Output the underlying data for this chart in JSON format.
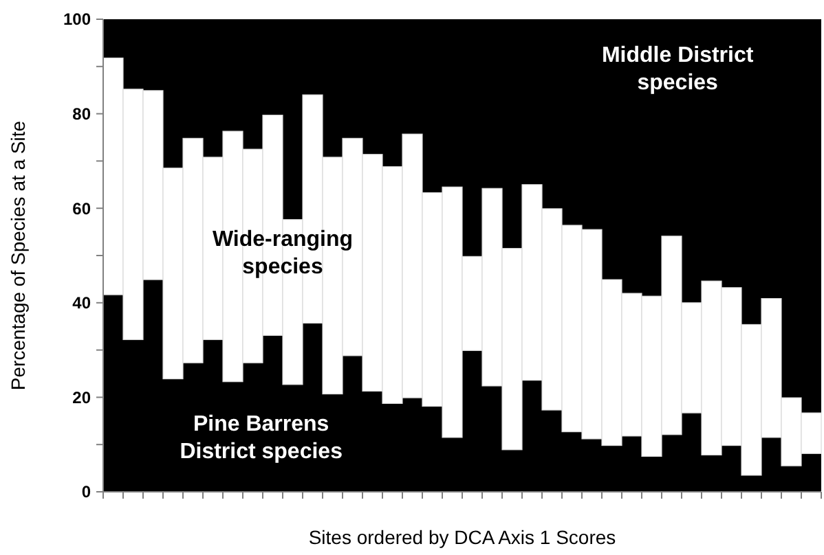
{
  "chart_data": {
    "type": "bar",
    "stacked": true,
    "ylabel": "Percentage of Species at a Site",
    "xlabel": "Sites ordered by DCA Axis 1 Scores",
    "categories": [
      null,
      null,
      null,
      null,
      null,
      null,
      null,
      null,
      null,
      null,
      null,
      null,
      null,
      null,
      null,
      null,
      null,
      null,
      null,
      null,
      null,
      null,
      null,
      null,
      null,
      null,
      null,
      null,
      null,
      null,
      null,
      null,
      null,
      null,
      null,
      null
    ],
    "ylim": [
      0,
      100
    ],
    "yticks": [
      0,
      {
        "value": 10,
        "label": null
      },
      20,
      {
        "value": 30,
        "label": null
      },
      40,
      {
        "value": 50,
        "label": null
      },
      60,
      {
        "value": 70,
        "label": null
      },
      80,
      {
        "value": 90,
        "label": null
      },
      100
    ],
    "grid": false,
    "series": [
      {
        "name": "Pine Barrens District species",
        "color": "#000000",
        "values": [
          41.7,
          32.2,
          44.9,
          23.9,
          27.3,
          32.2,
          23.3,
          27.3,
          33.1,
          22.7,
          35.7,
          20.7,
          28.8,
          21.3,
          18.7,
          19.9,
          18.1,
          11.5,
          29.9,
          22.4,
          8.9,
          23.6,
          17.3,
          12.7,
          11.2,
          9.8,
          11.8,
          7.5,
          12.1,
          16.7,
          7.8,
          9.8,
          3.5,
          11.5,
          5.5,
          8.1
        ]
      },
      {
        "name": "Wide-ranging species",
        "color": "#ffffff",
        "values": [
          50.1,
          53,
          40,
          44.6,
          47.5,
          38.6,
          53,
          45.2,
          46.6,
          34.9,
          48.3,
          50.1,
          46,
          50.1,
          50.1,
          55.8,
          45.2,
          53,
          19.9,
          41.8,
          42.6,
          41.4,
          42.6,
          43.7,
          44.3,
          35.1,
          30.2,
          33.9,
          42,
          23.3,
          36.8,
          33.4,
          31.9,
          29.4,
          14.4,
          8.6
        ]
      },
      {
        "name": "Middle District species",
        "color": "#000000",
        "values": [
          8.2,
          14.8,
          15.1,
          31.5,
          25.2,
          29.2,
          23.7,
          27.5,
          20.3,
          42.4,
          16,
          29.2,
          25.2,
          28.6,
          31.2,
          24.3,
          36.7,
          35.5,
          50.2,
          35.8,
          48.5,
          35,
          40.1,
          43.6,
          44.5,
          55.1,
          58,
          58.6,
          45.9,
          60,
          55.4,
          56.8,
          64.6,
          59.1,
          80.1,
          83.3
        ]
      }
    ]
  }
}
